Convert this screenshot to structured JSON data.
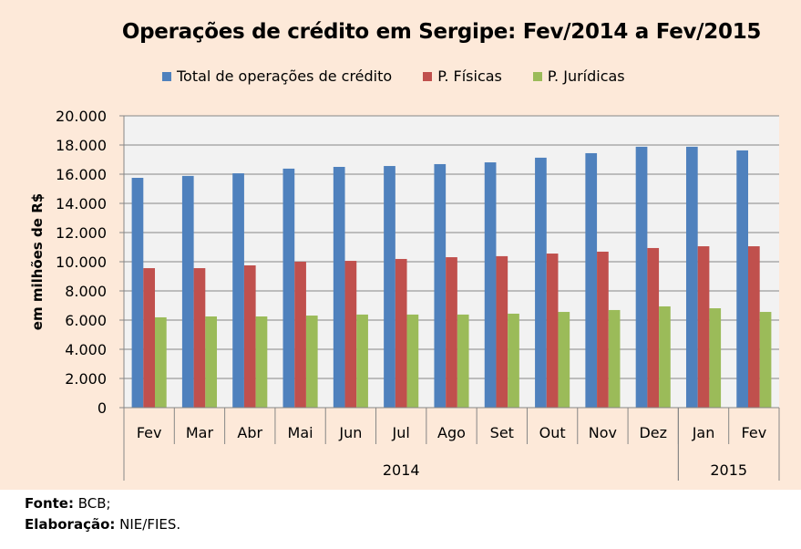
{
  "chart_data": {
    "type": "bar",
    "title": "Operações de crédito em Sergipe: Fev/2014 a Fev/2015",
    "xlabel": "",
    "ylabel": "em milhões de R$",
    "ylim": [
      0,
      20000
    ],
    "yticks": [
      0,
      2000,
      4000,
      6000,
      8000,
      10000,
      12000,
      14000,
      16000,
      18000,
      20000
    ],
    "ytick_labels": [
      "0",
      "2.000",
      "4.000",
      "6.000",
      "8.000",
      "10.000",
      "12.000",
      "14.000",
      "16.000",
      "18.000",
      "20.000"
    ],
    "grid": true,
    "legend_position": "top",
    "categories": [
      "Fev",
      "Mar",
      "Abr",
      "Mai",
      "Jun",
      "Jul",
      "Ago",
      "Set",
      "Out",
      "Nov",
      "Dez",
      "Jan",
      "Fev"
    ],
    "category_groups": [
      {
        "label": "2014",
        "count": 11
      },
      {
        "label": "2015",
        "count": 2
      }
    ],
    "series": [
      {
        "name": "Total de operações de crédito",
        "color": "#4f81bd",
        "values": [
          15750,
          15880,
          16060,
          16380,
          16500,
          16560,
          16690,
          16810,
          17130,
          17440,
          17880,
          17880,
          17630
        ]
      },
      {
        "name": "P. Físicas",
        "color": "#c0504d",
        "values": [
          9560,
          9560,
          9750,
          10000,
          10060,
          10190,
          10310,
          10380,
          10560,
          10690,
          10940,
          11060,
          11060
        ]
      },
      {
        "name": "P. Jurídicas",
        "color": "#9bbb59",
        "values": [
          6190,
          6250,
          6250,
          6310,
          6380,
          6380,
          6380,
          6440,
          6560,
          6690,
          6940,
          6810,
          6560
        ]
      }
    ]
  },
  "footer": {
    "source_label": "Fonte:",
    "source_value": " BCB;",
    "credit_label": "Elaboração:",
    "credit_value": " NIE/FIES."
  }
}
